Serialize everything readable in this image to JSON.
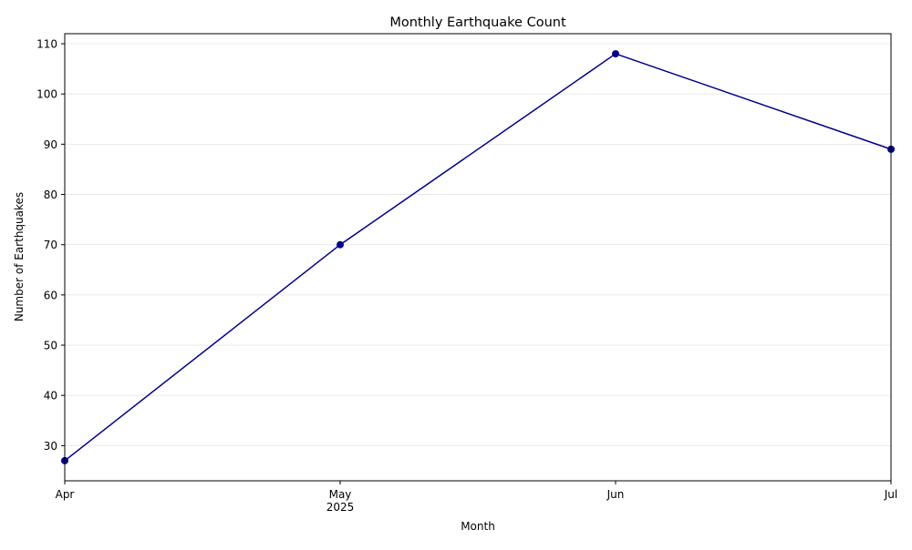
{
  "chart_data": {
    "type": "line",
    "title": "Monthly Earthquake Count",
    "xlabel": "Month",
    "ylabel": "Number of Earthquakes",
    "categories": [
      "Apr",
      "May",
      "Jun",
      "Jul"
    ],
    "x_sublabels": [
      "",
      "2025",
      "",
      ""
    ],
    "series": [
      {
        "values": [
          27,
          70,
          108,
          89
        ],
        "color": "#00008b"
      }
    ],
    "ylim": [
      23,
      112
    ],
    "yticks": [
      30,
      40,
      50,
      60,
      70,
      80,
      90,
      100,
      110
    ],
    "grid": "horizontal",
    "legend": "none"
  }
}
